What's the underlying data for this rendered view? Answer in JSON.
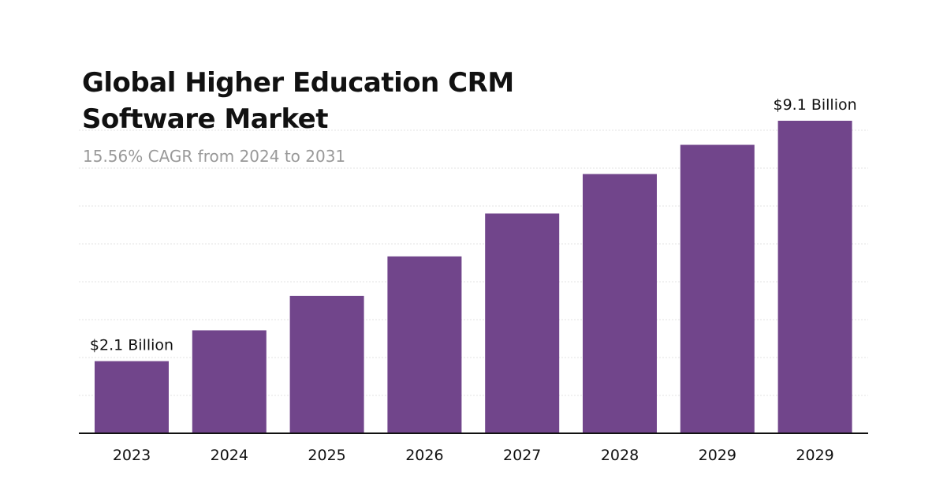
{
  "chart_data": {
    "type": "bar",
    "title": "Global Higher Education CRM Software Market",
    "subtitle": "15.56% CAGR from 2024 to 2031",
    "categories": [
      "2023",
      "2024",
      "2025",
      "2026",
      "2027",
      "2028",
      "2029",
      "2029"
    ],
    "values": [
      2.1,
      3.0,
      4.0,
      5.15,
      6.4,
      7.55,
      8.4,
      9.1
    ],
    "data_labels": [
      {
        "index": 0,
        "text": "$2.1 Billion"
      },
      {
        "index": 7,
        "text": "$9.1 Billion"
      }
    ],
    "unit": "Billion USD",
    "xlabel": "",
    "ylabel": "",
    "ylim": [
      0,
      9.1
    ],
    "grid": true,
    "legend": "none",
    "bar_color": "#71458b"
  }
}
